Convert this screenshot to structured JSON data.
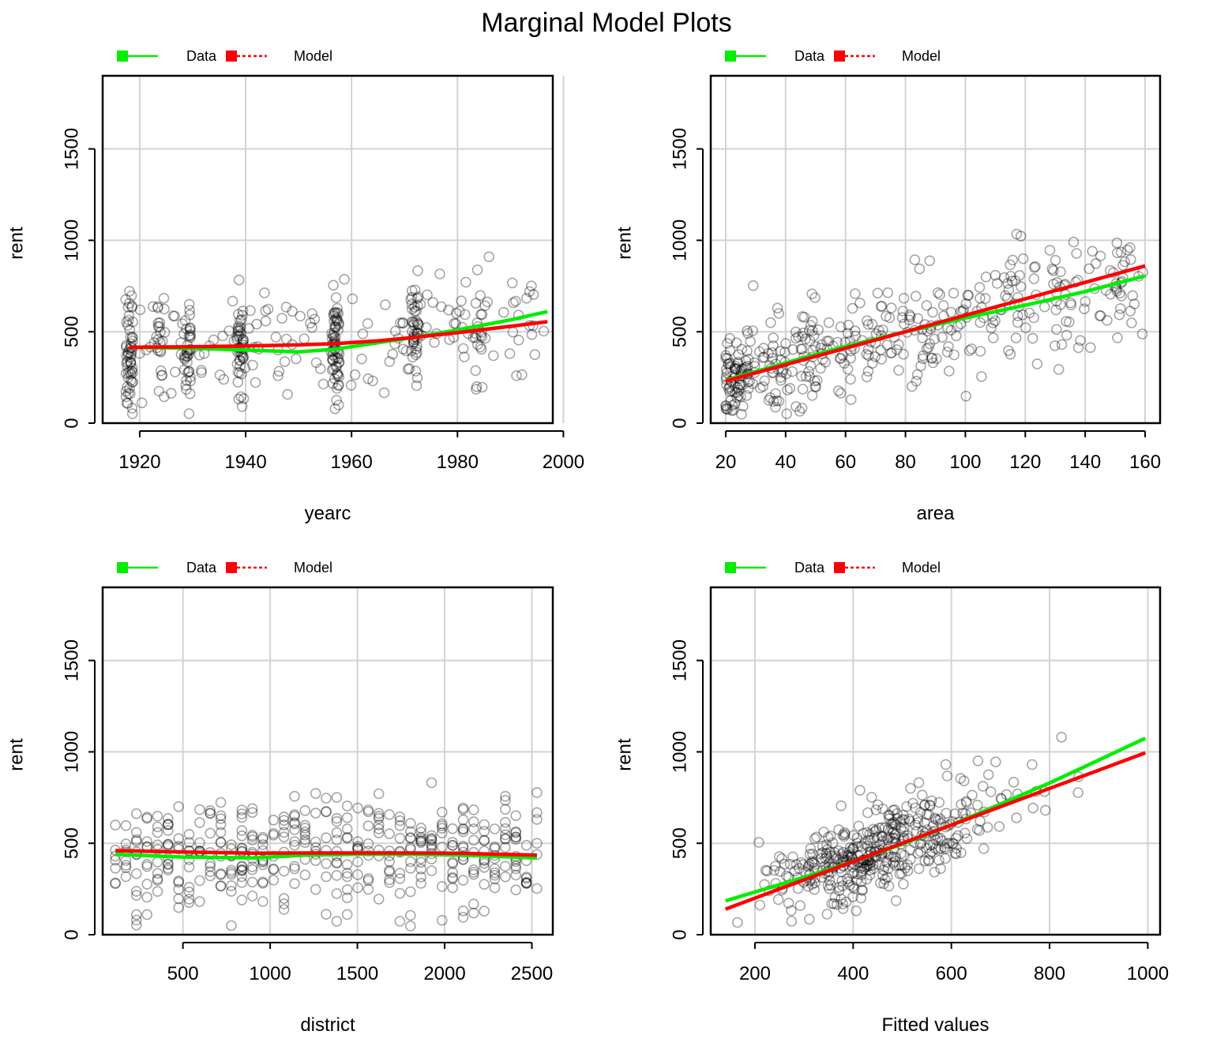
{
  "title": "Marginal Model Plots",
  "legend": {
    "data_label": "Data",
    "model_label": "Model"
  },
  "colors": {
    "data": "#00ee00",
    "model": "#ff0000",
    "points": "#000000",
    "grid": "#d3d3d3"
  },
  "chart_data": [
    {
      "type": "scatter",
      "xlabel": "yearc",
      "ylabel": "rent",
      "xlim": [
        1913,
        1998
      ],
      "ylim": [
        0,
        1900
      ],
      "xticks": [
        "1920",
        "1940",
        "1960",
        "1980",
        "2000"
      ],
      "yticks": [
        "0",
        "500",
        "1000",
        "1500"
      ],
      "series": [
        {
          "name": "Data",
          "x": [
            1918,
            1930,
            1940,
            1950,
            1957,
            1965,
            1972,
            1980,
            1990,
            1997
          ],
          "y": [
            415,
            410,
            400,
            390,
            405,
            440,
            470,
            510,
            565,
            610
          ]
        },
        {
          "name": "Model",
          "x": [
            1918,
            1930,
            1940,
            1950,
            1957,
            1965,
            1972,
            1980,
            1990,
            1997
          ],
          "y": [
            415,
            418,
            422,
            428,
            435,
            450,
            470,
            495,
            530,
            555
          ]
        }
      ]
    },
    {
      "type": "scatter",
      "xlabel": "area",
      "ylabel": "rent",
      "xlim": [
        15,
        165
      ],
      "ylim": [
        0,
        1900
      ],
      "xticks": [
        "20",
        "40",
        "60",
        "80",
        "100",
        "120",
        "140",
        "160"
      ],
      "yticks": [
        "0",
        "500",
        "1000",
        "1500"
      ],
      "series": [
        {
          "name": "Data",
          "x": [
            20,
            40,
            60,
            80,
            100,
            120,
            140,
            160
          ],
          "y": [
            235,
            330,
            420,
            500,
            575,
            645,
            720,
            805
          ]
        },
        {
          "name": "Model",
          "x": [
            20,
            40,
            60,
            80,
            100,
            120,
            140,
            160
          ],
          "y": [
            230,
            320,
            410,
            500,
            590,
            680,
            770,
            860
          ]
        }
      ]
    },
    {
      "type": "scatter",
      "xlabel": "district",
      "ylabel": "rent",
      "xlim": [
        40,
        2620
      ],
      "ylim": [
        0,
        1900
      ],
      "xticks": [
        "500",
        "1000",
        "1500",
        "2000",
        "2500"
      ],
      "yticks": [
        "0",
        "500",
        "1000",
        "1500"
      ],
      "series": [
        {
          "name": "Data",
          "x": [
            113,
            500,
            900,
            1200,
            1500,
            1800,
            2100,
            2529
          ],
          "y": [
            440,
            425,
            420,
            435,
            440,
            440,
            435,
            420
          ]
        },
        {
          "name": "Model",
          "x": [
            113,
            500,
            900,
            1200,
            1500,
            1800,
            2100,
            2529
          ],
          "y": [
            460,
            452,
            446,
            447,
            447,
            447,
            445,
            435
          ]
        }
      ]
    },
    {
      "type": "scatter",
      "xlabel": "Fitted values",
      "ylabel": "rent",
      "xlim": [
        110,
        1025
      ],
      "ylim": [
        0,
        1900
      ],
      "xticks": [
        "200",
        "400",
        "600",
        "800",
        "1000"
      ],
      "yticks": [
        "0",
        "500",
        "1000",
        "1500"
      ],
      "series": [
        {
          "name": "Data",
          "x": [
            140,
            300,
            400,
            500,
            600,
            700,
            800,
            900,
            995
          ],
          "y": [
            185,
            315,
            400,
            495,
            600,
            715,
            830,
            955,
            1075
          ]
        },
        {
          "name": "Model",
          "x": [
            140,
            300,
            400,
            500,
            600,
            700,
            800,
            900,
            995
          ],
          "y": [
            140,
            300,
            400,
            500,
            600,
            700,
            800,
            900,
            995
          ]
        }
      ]
    }
  ]
}
